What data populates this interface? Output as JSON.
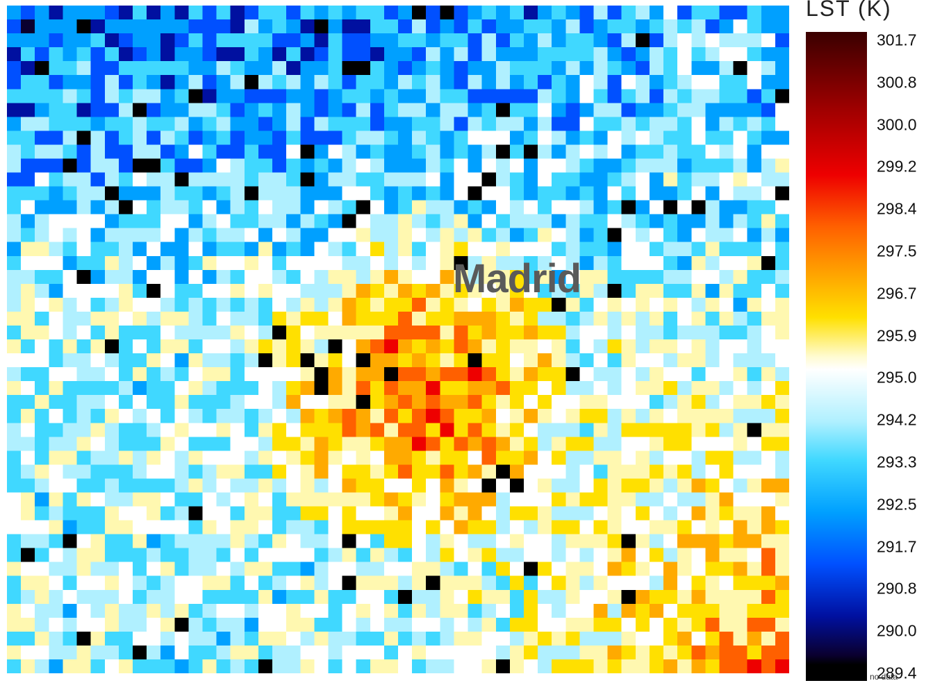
{
  "legend": {
    "title": "LST (K)",
    "ticks": [
      "301.7",
      "300.8",
      "300.0",
      "299.2",
      "298.4",
      "297.5",
      "296.7",
      "295.9",
      "295.0",
      "294.2",
      "293.3",
      "292.5",
      "291.7",
      "290.8",
      "290.0",
      "289.4"
    ],
    "bottom_label": "no data"
  },
  "map": {
    "city_label": "Madrid",
    "grid_cols": 56,
    "grid_rows": 48,
    "value_range": [
      289.4,
      301.7
    ],
    "hotspot_center": [
      0.52,
      0.57
    ]
  },
  "colors": {
    "no_data": "#000000",
    "palette": [
      "#0a0030",
      "#0010a0",
      "#0050ff",
      "#00a0ff",
      "#40d8ff",
      "#b0f0ff",
      "#ffffff",
      "#fff8b0",
      "#ffe000",
      "#ffaa00",
      "#ff6000",
      "#ee0000",
      "#a00000",
      "#4a0000"
    ]
  }
}
